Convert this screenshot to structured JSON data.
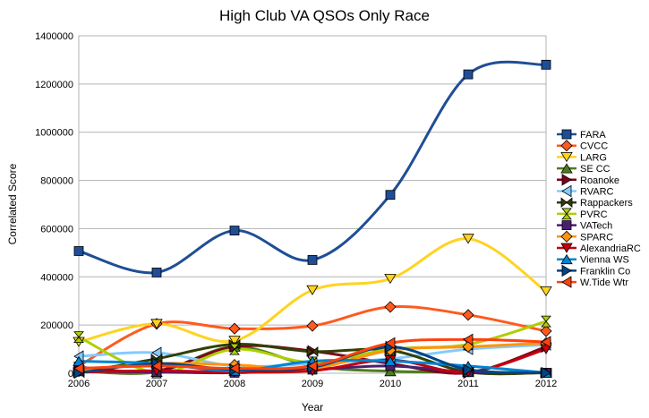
{
  "chart_data": {
    "type": "line",
    "title": "High Club VA QSOs Only Race",
    "xlabel": "Year",
    "ylabel": "Correlated Score",
    "categories": [
      "2006",
      "2007",
      "2008",
      "2009",
      "2010",
      "2011",
      "2012"
    ],
    "y_ticks": [
      "0",
      "200000",
      "400000",
      "600000",
      "800000",
      "1000000",
      "1200000",
      "1400000"
    ],
    "ylim": [
      0,
      1400000
    ],
    "grid": "horizontal",
    "legend_position": "right",
    "series": [
      {
        "name": "FARA",
        "color": "#1f4e96",
        "marker": "square",
        "values": [
          507000,
          418000,
          592000,
          470000,
          740000,
          1240000,
          1280000
        ]
      },
      {
        "name": "CVCC",
        "color": "#ff5a1f",
        "marker": "diamond",
        "values": [
          30000,
          205000,
          185000,
          197000,
          275000,
          242000,
          175000
        ]
      },
      {
        "name": "LARG",
        "color": "#ffd320",
        "marker": "triangle-down",
        "values": [
          130000,
          205000,
          135000,
          345000,
          392000,
          558000,
          340000
        ]
      },
      {
        "name": "SE CC",
        "color": "#4e7d1e",
        "marker": "triangle-up",
        "values": [
          10000,
          5000,
          110000,
          30000,
          8000,
          5000,
          2000
        ]
      },
      {
        "name": "Roanoke",
        "color": "#7e0021",
        "marker": "triangle-right",
        "values": [
          25000,
          10000,
          110000,
          92000,
          40000,
          2000,
          110000
        ]
      },
      {
        "name": "RVARC",
        "color": "#83caff",
        "marker": "triangle-left",
        "values": [
          70000,
          85000,
          30000,
          40000,
          60000,
          100000,
          118000
        ]
      },
      {
        "name": "Rappackers",
        "color": "#314004",
        "marker": "bowtie-h",
        "values": [
          2000,
          60000,
          120000,
          90000,
          95000,
          5000,
          2000
        ]
      },
      {
        "name": "PVRC",
        "color": "#aecf00",
        "marker": "hourglass",
        "values": [
          150000,
          3000,
          100000,
          45000,
          100000,
          120000,
          215000
        ]
      },
      {
        "name": "VATech",
        "color": "#4b1f6f",
        "marker": "square",
        "values": [
          8000,
          5000,
          2000,
          15000,
          30000,
          5000,
          2000
        ]
      },
      {
        "name": "SPARC",
        "color": "#ff950e",
        "marker": "diamond",
        "values": [
          10000,
          40000,
          35000,
          20000,
          95000,
          110000,
          125000
        ]
      },
      {
        "name": "AlexandriaRC",
        "color": "#c5000b",
        "marker": "triangle-down",
        "values": [
          5000,
          10000,
          5000,
          10000,
          55000,
          5000,
          100000
        ]
      },
      {
        "name": "Vienna WS",
        "color": "#0084d1",
        "marker": "triangle-up",
        "values": [
          50000,
          40000,
          10000,
          50000,
          50000,
          30000,
          2000
        ]
      },
      {
        "name": "Franklin Co",
        "color": "#004586",
        "marker": "triangle-right",
        "values": [
          2000,
          40000,
          15000,
          25000,
          110000,
          15000,
          2000
        ]
      },
      {
        "name": "W.Tide Wtr",
        "color": "#ff420e",
        "marker": "triangle-left",
        "values": [
          20000,
          30000,
          20000,
          30000,
          125000,
          140000,
          130000
        ]
      }
    ]
  }
}
